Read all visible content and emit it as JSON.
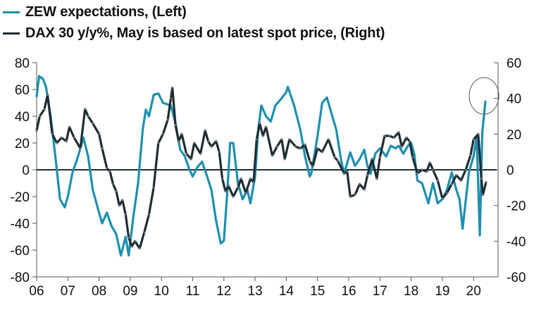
{
  "chart_data": {
    "type": "line",
    "title": "",
    "xlabel": "",
    "ylabel_left": "",
    "ylabel_right": "",
    "x_range": [
      2006,
      2020.95
    ],
    "x_ticks": [
      "06",
      "07",
      "08",
      "09",
      "10",
      "11",
      "12",
      "13",
      "14",
      "15",
      "16",
      "17",
      "18",
      "19",
      "20"
    ],
    "y_left": {
      "range": [
        -80,
        80
      ],
      "ticks": [
        "80",
        "60",
        "40",
        "20",
        "0",
        "-20",
        "-40",
        "-60",
        "-80"
      ]
    },
    "y_right": {
      "range": [
        -60,
        60
      ],
      "ticks": [
        "60",
        "40",
        "20",
        "0",
        "-20",
        "-40",
        "-60"
      ]
    },
    "grid": false,
    "zero_line": true,
    "legend_placement": "top-left",
    "annotation": "circle around latest ZEW expectations reading (May 2020)",
    "series": [
      {
        "name": "ZEW expectations, (Left)",
        "axis": "left",
        "color": "#1e8fb0",
        "markers": false,
        "x": [
          2006.0,
          2006.08,
          2006.2,
          2006.3,
          2006.45,
          2006.6,
          2006.75,
          2006.9,
          2007.0,
          2007.15,
          2007.3,
          2007.5,
          2007.65,
          2007.8,
          2008.0,
          2008.1,
          2008.25,
          2008.4,
          2008.55,
          2008.7,
          2008.85,
          2008.95,
          2009.1,
          2009.25,
          2009.4,
          2009.5,
          2009.6,
          2009.75,
          2009.9,
          2010.05,
          2010.3,
          2010.45,
          2010.6,
          2010.75,
          2010.9,
          2011.0,
          2011.15,
          2011.3,
          2011.45,
          2011.6,
          2011.75,
          2011.9,
          2012.0,
          2012.1,
          2012.2,
          2012.3,
          2012.45,
          2012.6,
          2012.75,
          2012.85,
          2013.0,
          2013.1,
          2013.2,
          2013.35,
          2013.5,
          2013.65,
          2013.8,
          2014.0,
          2014.05,
          2014.25,
          2014.45,
          2014.6,
          2014.75,
          2014.8,
          2015.0,
          2015.15,
          2015.3,
          2015.45,
          2015.6,
          2015.75,
          2015.85,
          2015.95,
          2016.05,
          2016.2,
          2016.35,
          2016.5,
          2016.6,
          2016.7,
          2016.85,
          2017.0,
          2017.2,
          2017.35,
          2017.5,
          2017.6,
          2017.75,
          2017.9,
          2018.0,
          2018.1,
          2018.2,
          2018.35,
          2018.55,
          2018.7,
          2018.85,
          2019.0,
          2019.15,
          2019.3,
          2019.45,
          2019.55,
          2019.65,
          2019.75,
          2019.85,
          2020.0,
          2020.1,
          2020.2,
          2020.28,
          2020.38
        ],
        "values": [
          55,
          70,
          68,
          62,
          40,
          10,
          -22,
          -28,
          -20,
          -2,
          8,
          24,
          10,
          -15,
          -32,
          -40,
          -32,
          -42,
          -48,
          -64,
          -50,
          -64,
          -35,
          -10,
          30,
          45,
          40,
          56,
          57,
          50,
          48,
          35,
          15,
          10,
          0,
          -5,
          2,
          6,
          -4,
          -15,
          -38,
          -55,
          -53,
          -20,
          20,
          20,
          -10,
          -22,
          -15,
          -25,
          -5,
          30,
          48,
          40,
          36,
          48,
          52,
          58,
          62,
          48,
          30,
          10,
          -5,
          -3,
          25,
          50,
          54,
          42,
          30,
          8,
          -3,
          5,
          13,
          3,
          8,
          15,
          3,
          -3,
          12,
          16,
          10,
          18,
          16,
          18,
          12,
          18,
          20,
          12,
          -8,
          -10,
          -25,
          -10,
          -25,
          -22,
          -15,
          -2,
          -15,
          -22,
          -44,
          -23,
          -2,
          10,
          25,
          -49,
          28,
          51
        ]
      },
      {
        "name": "DAX 30 y/y%, May is based on latest spot price, (Right)",
        "axis": "right",
        "color": "#1f2d33",
        "markers": true,
        "x": [
          2006.0,
          2006.1,
          2006.25,
          2006.35,
          2006.5,
          2006.65,
          2006.8,
          2006.95,
          2007.05,
          2007.2,
          2007.4,
          2007.55,
          2007.65,
          2007.8,
          2008.0,
          2008.1,
          2008.25,
          2008.35,
          2008.45,
          2008.55,
          2008.65,
          2008.75,
          2008.85,
          2008.95,
          2009.05,
          2009.15,
          2009.3,
          2009.45,
          2009.6,
          2009.75,
          2009.9,
          2010.05,
          2010.2,
          2010.3,
          2010.35,
          2010.45,
          2010.55,
          2010.65,
          2010.8,
          2010.95,
          2011.05,
          2011.25,
          2011.4,
          2011.5,
          2011.6,
          2011.75,
          2011.85,
          2011.95,
          2012.05,
          2012.15,
          2012.3,
          2012.45,
          2012.55,
          2012.7,
          2012.85,
          2012.95,
          2013.05,
          2013.15,
          2013.25,
          2013.35,
          2013.55,
          2013.7,
          2013.85,
          2013.95,
          2014.1,
          2014.3,
          2014.45,
          2014.6,
          2014.75,
          2014.85,
          2015.0,
          2015.15,
          2015.35,
          2015.55,
          2015.65,
          2015.85,
          2015.95,
          2016.05,
          2016.2,
          2016.35,
          2016.5,
          2016.6,
          2016.75,
          2016.9,
          2017.0,
          2017.15,
          2017.3,
          2017.45,
          2017.6,
          2017.7,
          2017.85,
          2017.95,
          2018.05,
          2018.2,
          2018.35,
          2018.5,
          2018.6,
          2018.7,
          2018.85,
          2019.0,
          2019.15,
          2019.3,
          2019.45,
          2019.6,
          2019.75,
          2019.9,
          2020.0,
          2020.15,
          2020.25,
          2020.3,
          2020.4
        ],
        "values": [
          22,
          30,
          34,
          42,
          20,
          15,
          18,
          16,
          24,
          18,
          12,
          34,
          30,
          26,
          20,
          12,
          1,
          -1,
          -8,
          -12,
          -20,
          -17,
          -25,
          -38,
          -43,
          -40,
          -44,
          -35,
          -25,
          -10,
          15,
          20,
          28,
          40,
          46,
          25,
          16,
          20,
          9,
          6,
          15,
          9,
          22,
          16,
          13,
          16,
          10,
          -5,
          -12,
          -9,
          -15,
          -10,
          -5,
          -13,
          -5,
          -7,
          17,
          26,
          19,
          24,
          8,
          13,
          17,
          6,
          17,
          13,
          12,
          14,
          5,
          2,
          12,
          10,
          17,
          7,
          5,
          -2,
          -1,
          -15,
          -14,
          -8,
          -11,
          -3,
          6,
          -5,
          7,
          19,
          19,
          18,
          21,
          13,
          18,
          16,
          7,
          -2,
          0,
          -1,
          4,
          0,
          -6,
          -16,
          -13,
          -8,
          -3,
          -6,
          0,
          8,
          17,
          20,
          -5,
          -14,
          -7
        ]
      }
    ]
  }
}
